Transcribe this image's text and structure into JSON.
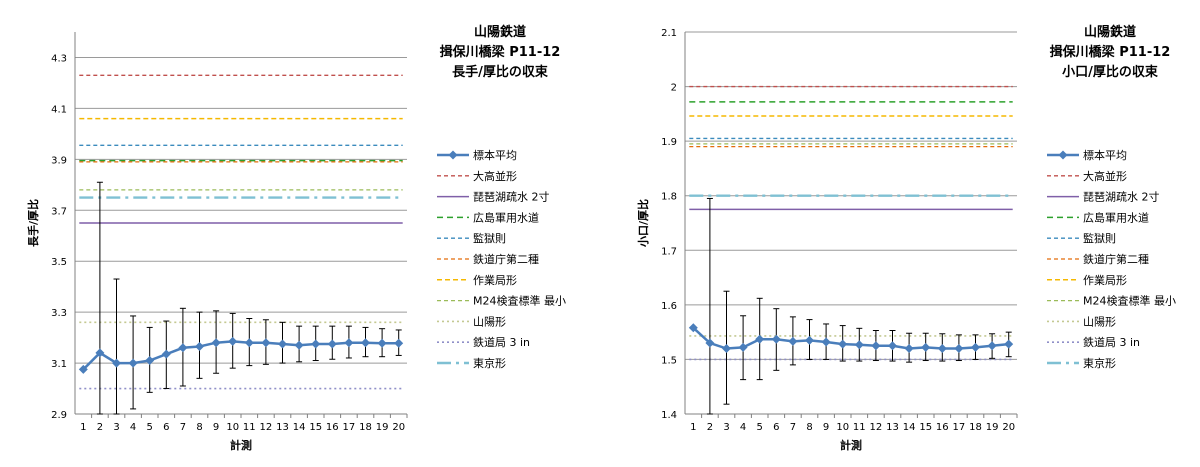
{
  "chart_data": [
    {
      "type": "line",
      "title_lines": [
        "山陽鉄道",
        "揖保川橋梁 P11-12",
        "長手/厚比の収束"
      ],
      "xlabel": "計測",
      "ylabel": "長手/厚比",
      "x": [
        1,
        2,
        3,
        4,
        5,
        6,
        7,
        8,
        9,
        10,
        11,
        12,
        13,
        14,
        15,
        16,
        17,
        18,
        19,
        20
      ],
      "ylim": [
        2.9,
        4.4
      ],
      "yticks": [
        "2.9",
        "3.1",
        "3.3",
        "3.5",
        "3.7",
        "3.9",
        "4.1",
        "4.3"
      ],
      "grid": true,
      "legend_position": "right",
      "series": [
        {
          "name": "標本平均",
          "type": "mean",
          "color": "#4a7ebb",
          "values": [
            3.075,
            3.14,
            3.1,
            3.1,
            3.11,
            3.135,
            3.16,
            3.165,
            3.18,
            3.185,
            3.18,
            3.18,
            3.175,
            3.17,
            3.175,
            3.175,
            3.18,
            3.18,
            3.178,
            3.178
          ],
          "err_low": [
            3.075,
            2.9,
            2.9,
            2.92,
            2.985,
            3.0,
            3.01,
            3.04,
            3.06,
            3.08,
            3.09,
            3.095,
            3.1,
            3.105,
            3.11,
            3.115,
            3.12,
            3.125,
            3.125,
            3.13
          ],
          "err_high": [
            3.075,
            3.81,
            3.43,
            3.285,
            3.24,
            3.265,
            3.315,
            3.3,
            3.305,
            3.295,
            3.275,
            3.27,
            3.26,
            3.245,
            3.245,
            3.245,
            3.245,
            3.24,
            3.235,
            3.23
          ]
        },
        {
          "name": "大高並形",
          "type": "hline",
          "value": 4.23,
          "color": "#c0504d",
          "dash": "4,3",
          "width": 1.3
        },
        {
          "name": "琵琶湖疏水 2寸",
          "type": "hline",
          "value": 3.65,
          "color": "#7f5fa8",
          "dash": "",
          "width": 1.5
        },
        {
          "name": "広島軍用水道",
          "type": "hline",
          "value": 3.895,
          "color": "#2ca02c",
          "dash": "6,4",
          "width": 1.5
        },
        {
          "name": "監獄則",
          "type": "hline",
          "value": 3.955,
          "color": "#3b8bbd",
          "dash": "4,3",
          "width": 1.3
        },
        {
          "name": "鉄道庁第二種",
          "type": "hline",
          "value": 3.89,
          "color": "#e46c0a",
          "dash": "4,3",
          "width": 1.3
        },
        {
          "name": "作業局形",
          "type": "hline",
          "value": 4.06,
          "color": "#f5b800",
          "dash": "5,3",
          "width": 1.5
        },
        {
          "name": "M24検査標準 最小",
          "type": "hline",
          "value": 3.78,
          "color": "#9bbb59",
          "dash": "4,3",
          "width": 1.3
        },
        {
          "name": "山陽形",
          "type": "hline",
          "value": 3.26,
          "color": "#c4c992",
          "dash": "2,3",
          "width": 1.6
        },
        {
          "name": "鉄道局 3 in",
          "type": "hline",
          "value": 3.0,
          "color": "#8f8fc8",
          "dash": "2,3",
          "width": 1.6
        },
        {
          "name": "東京形",
          "type": "hline",
          "value": 3.75,
          "color": "#7fc0d3",
          "dash": "14,5,3,5",
          "width": 2.4
        }
      ]
    },
    {
      "type": "line",
      "title_lines": [
        "山陽鉄道",
        "揖保川橋梁 P11-12",
        "小口/厚比の収束"
      ],
      "xlabel": "計測",
      "ylabel": "小口/厚比",
      "x": [
        1,
        2,
        3,
        4,
        5,
        6,
        7,
        8,
        9,
        10,
        11,
        12,
        13,
        14,
        15,
        16,
        17,
        18,
        19,
        20
      ],
      "ylim": [
        1.4,
        2.1
      ],
      "yticks": [
        "1.4",
        "1.5",
        "1.6",
        "1.7",
        "1.8",
        "1.9",
        "2",
        "2.1"
      ],
      "grid": true,
      "legend_position": "right",
      "series": [
        {
          "name": "標本平均",
          "type": "mean",
          "color": "#4a7ebb",
          "values": [
            1.558,
            1.53,
            1.52,
            1.522,
            1.537,
            1.537,
            1.533,
            1.535,
            1.532,
            1.528,
            1.527,
            1.525,
            1.525,
            1.52,
            1.522,
            1.52,
            1.52,
            1.522,
            1.525,
            1.528
          ],
          "err_low": [
            1.558,
            1.4,
            1.418,
            1.463,
            1.463,
            1.48,
            1.49,
            1.5,
            1.5,
            1.497,
            1.497,
            1.498,
            1.497,
            1.495,
            1.498,
            1.497,
            1.498,
            1.5,
            1.502,
            1.505
          ],
          "err_high": [
            1.558,
            1.795,
            1.625,
            1.58,
            1.612,
            1.593,
            1.578,
            1.573,
            1.565,
            1.562,
            1.557,
            1.553,
            1.553,
            1.548,
            1.548,
            1.547,
            1.545,
            1.545,
            1.547,
            1.55
          ]
        },
        {
          "name": "大高並形",
          "type": "hline",
          "value": 2.0,
          "color": "#c0504d",
          "dash": "4,3",
          "width": 1.3
        },
        {
          "name": "琵琶湖疏水 2寸",
          "type": "hline",
          "value": 1.775,
          "color": "#7f5fa8",
          "dash": "",
          "width": 1.5
        },
        {
          "name": "広島軍用水道",
          "type": "hline",
          "value": 1.972,
          "color": "#2ca02c",
          "dash": "6,4",
          "width": 1.5
        },
        {
          "name": "監獄則",
          "type": "hline",
          "value": 1.905,
          "color": "#3b8bbd",
          "dash": "4,3",
          "width": 1.3
        },
        {
          "name": "鉄道庁第二種",
          "type": "hline",
          "value": 1.89,
          "color": "#e46c0a",
          "dash": "4,3",
          "width": 1.3
        },
        {
          "name": "作業局形",
          "type": "hline",
          "value": 1.946,
          "color": "#f5b800",
          "dash": "5,3",
          "width": 1.5
        },
        {
          "name": "M24検査標準 最小",
          "type": "hline",
          "value": 1.895,
          "color": "#9bbb59",
          "dash": "4,3",
          "width": 1.3
        },
        {
          "name": "山陽形",
          "type": "hline",
          "value": 1.543,
          "color": "#c4c992",
          "dash": "2,3",
          "width": 1.6
        },
        {
          "name": "鉄道局 3 in",
          "type": "hline",
          "value": 1.5,
          "color": "#8f8fc8",
          "dash": "2,3",
          "width": 1.6
        },
        {
          "name": "東京形",
          "type": "hline",
          "value": 1.8,
          "color": "#7fc0d3",
          "dash": "14,5,3,5",
          "width": 2.4
        }
      ]
    }
  ]
}
